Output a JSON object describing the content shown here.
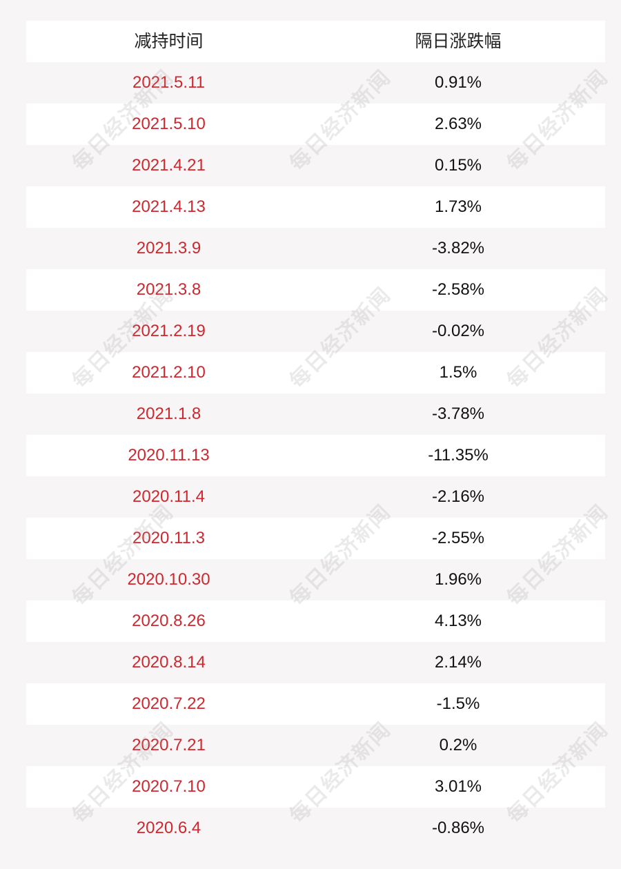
{
  "table": {
    "headers": {
      "date": "减持时间",
      "change": "隔日涨跌幅"
    },
    "rows": [
      {
        "date": "2021.5.11",
        "change": "0.91%"
      },
      {
        "date": "2021.5.10",
        "change": "2.63%"
      },
      {
        "date": "2021.4.21",
        "change": "0.15%"
      },
      {
        "date": "2021.4.13",
        "change": "1.73%"
      },
      {
        "date": "2021.3.9",
        "change": "-3.82%"
      },
      {
        "date": "2021.3.8",
        "change": "-2.58%"
      },
      {
        "date": "2021.2.19",
        "change": "-0.02%"
      },
      {
        "date": "2021.2.10",
        "change": "1.5%"
      },
      {
        "date": "2021.1.8",
        "change": "-3.78%"
      },
      {
        "date": "2020.11.13",
        "change": "-11.35%"
      },
      {
        "date": "2020.11.4",
        "change": "-2.16%"
      },
      {
        "date": "2020.11.3",
        "change": "-2.55%"
      },
      {
        "date": "2020.10.30",
        "change": "1.96%"
      },
      {
        "date": "2020.8.26",
        "change": "4.13%"
      },
      {
        "date": "2020.8.14",
        "change": "2.14%"
      },
      {
        "date": "2020.7.22",
        "change": "-1.5%"
      },
      {
        "date": "2020.7.21",
        "change": "0.2%"
      },
      {
        "date": "2020.7.10",
        "change": "3.01%"
      },
      {
        "date": "2020.6.4",
        "change": "-0.86%"
      }
    ]
  },
  "watermark": {
    "text": "每日经济新闻"
  },
  "colors": {
    "date_text": "#d0262d",
    "change_text": "#111111",
    "row_white": "#ffffff",
    "row_shade": "#f8f5f6"
  }
}
